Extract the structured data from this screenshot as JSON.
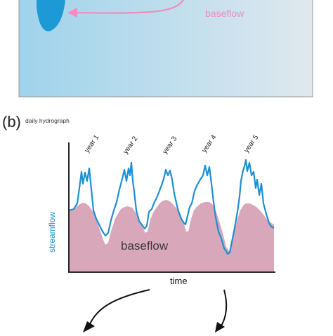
{
  "panel_a": {
    "label": "baseflow",
    "colors": {
      "bg_left": "#9ed3ec",
      "bg_right": "#dfe8ee",
      "drop": "#1d9ad6",
      "arrow": "#f08cbe"
    }
  },
  "panel_b": {
    "letter": "(b)",
    "title": "daily hydrograph",
    "y_label": "streamflow",
    "x_label": "time",
    "area_label": "baseflow",
    "year_labels": [
      "year 1",
      "year 2",
      "year 3",
      "year 4",
      "year 5"
    ],
    "colors": {
      "streamflow_line": "#1f8fd1",
      "baseflow_fill": "#d9a7ba",
      "y_label": "#1f8fd1"
    }
  }
}
